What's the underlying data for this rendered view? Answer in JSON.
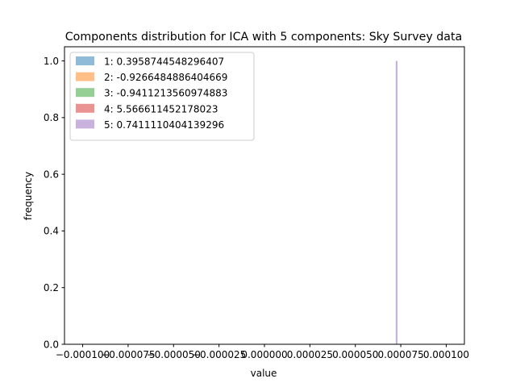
{
  "chart_data": {
    "type": "bar",
    "title": "Components distribution for ICA with 5 components: Sky Survey data",
    "xlabel": "value",
    "ylabel": "frequency",
    "xlim": [
      -0.00011,
      0.00011
    ],
    "ylim": [
      0.0,
      1.05
    ],
    "x_ticks": [
      -0.0001,
      -7.5e-05,
      -5e-05,
      -2.5e-05,
      0.0,
      2.5e-05,
      5e-05,
      7.5e-05,
      0.0001
    ],
    "x_tick_labels": [
      "−0.000100",
      "−0.000075",
      "−0.000050",
      "−0.000025",
      "0.000000",
      "0.000025",
      "0.000050",
      "0.000075",
      "0.000100"
    ],
    "y_ticks": [
      0.0,
      0.2,
      0.4,
      0.6,
      0.8,
      1.0
    ],
    "y_tick_labels": [
      "0.0",
      "0.2",
      "0.4",
      "0.6",
      "0.8",
      "1.0"
    ],
    "grid": false,
    "legend_position": "top-left",
    "series": [
      {
        "name": "1: 0.3958744548296407",
        "color": "#1f77b4",
        "bars": []
      },
      {
        "name": "2: -0.9266484886404669",
        "color": "#ff7f0e",
        "bars": []
      },
      {
        "name": "3: -0.9411213560974883",
        "color": "#2ca02c",
        "bars": []
      },
      {
        "name": "4: 5.566611452178023",
        "color": "#d62728",
        "bars": []
      },
      {
        "name": "5: 0.7411110404139296",
        "color": "#9467bd",
        "bars": [
          {
            "x0": 7.22e-05,
            "x1": 7.32e-05,
            "value": 1.0
          }
        ]
      }
    ],
    "bar_alpha": 0.5
  }
}
